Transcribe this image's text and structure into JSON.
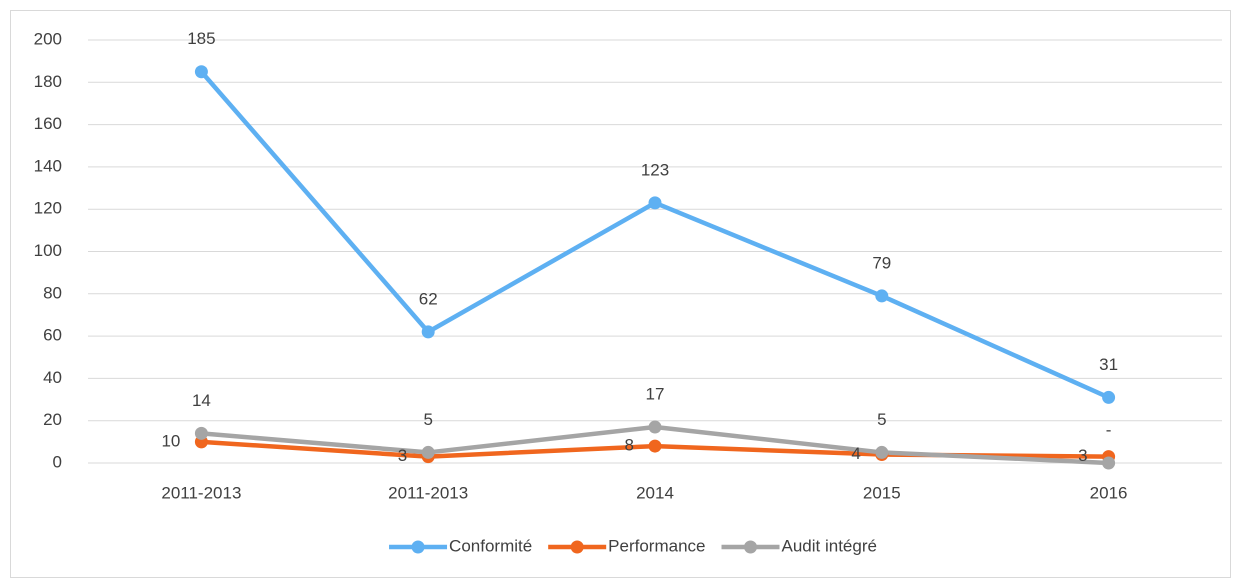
{
  "chart_data": {
    "type": "line",
    "categories": [
      "2011-2013",
      "2011-2013",
      "2014",
      "2015",
      "2016"
    ],
    "series": [
      {
        "name": "Conformité",
        "color": "#5eb0f2",
        "values": [
          185,
          62,
          123,
          79,
          31
        ]
      },
      {
        "name": "Performance",
        "color": "#f0661e",
        "values": [
          10,
          3,
          8,
          4,
          3
        ]
      },
      {
        "name": "Audit intégré",
        "color": "#a5a5a5",
        "values": [
          14,
          5,
          17,
          5,
          0
        ],
        "value_labels": [
          "14",
          "5",
          "17",
          "5",
          "-"
        ]
      }
    ],
    "ylim": [
      0,
      200
    ],
    "yticks": [
      0,
      20,
      40,
      60,
      80,
      100,
      120,
      140,
      160,
      180,
      200
    ],
    "grid": true,
    "legend": "bottom"
  }
}
